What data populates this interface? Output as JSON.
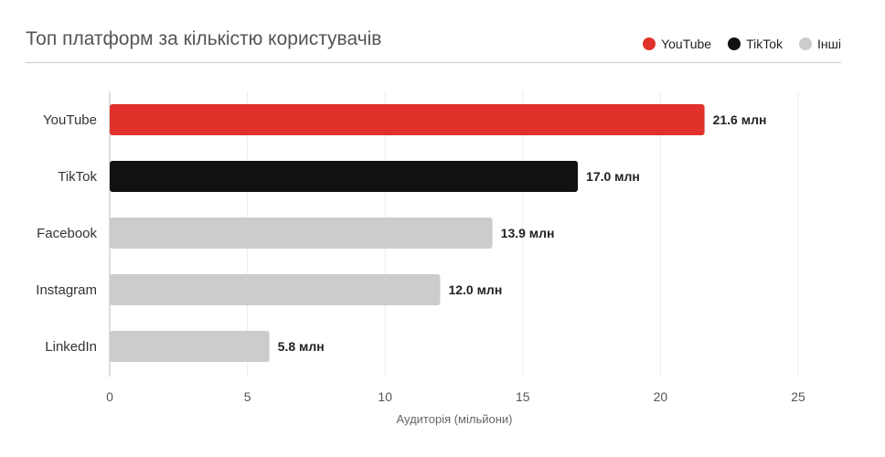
{
  "chart_data": {
    "type": "bar",
    "orientation": "horizontal",
    "title": "Топ платформ за кількістю користувачів",
    "xlabel": "Аудиторія (мільйони)",
    "ylabel": "",
    "xlim": [
      0,
      25
    ],
    "xticks": [
      "0",
      "5",
      "10",
      "15",
      "20",
      "25"
    ],
    "grid": true,
    "legend_position": "top-right",
    "legend": [
      {
        "label": "YouTube",
        "color": "#e0312a"
      },
      {
        "label": "TikTok",
        "color": "#111111"
      },
      {
        "label": "Інші",
        "color": "#cccccc"
      }
    ],
    "categories": [
      "YouTube",
      "TikTok",
      "Facebook",
      "Instagram",
      "LinkedIn"
    ],
    "values": [
      21.6,
      17.0,
      13.9,
      12.0,
      5.8
    ],
    "value_labels": [
      "21.6 млн",
      "17.0 млн",
      "13.9 млн",
      "12.0 млн",
      "5.8 млн"
    ],
    "colors": [
      "#e0312a",
      "#111111",
      "#cccccc",
      "#cccccc",
      "#cccccc"
    ]
  }
}
